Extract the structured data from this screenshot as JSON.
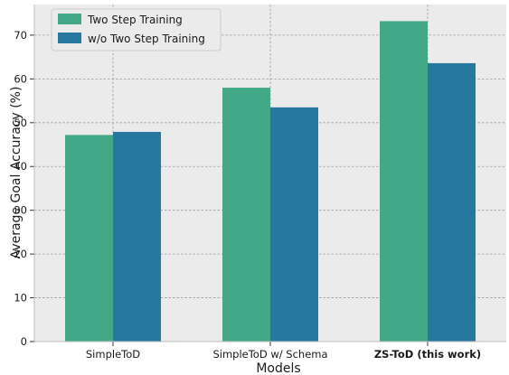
{
  "chart_data": {
    "type": "bar",
    "xlabel": "Models",
    "ylabel": "Average Goal Accuracy (%)",
    "categories": [
      "SimpleToD",
      "SimpleToD w/ Schema",
      "ZS-ToD (this work)"
    ],
    "category_bold": [
      false,
      false,
      true
    ],
    "ylim": [
      0,
      77
    ],
    "yticks": [
      0,
      10,
      20,
      30,
      40,
      50,
      60,
      70
    ],
    "grid": true,
    "legend_position": "top-left",
    "series": [
      {
        "name": "Two Step Training",
        "color": "#43a887",
        "values": [
          47.2,
          58.0,
          73.2
        ]
      },
      {
        "name": "w/o Two Step Training",
        "color": "#2778a0",
        "values": [
          47.9,
          53.5,
          63.6
        ]
      }
    ]
  },
  "colors": {
    "plot_background": "#ebebeb",
    "grid": "#9a9a9a",
    "frame": "#bcbcbc"
  }
}
